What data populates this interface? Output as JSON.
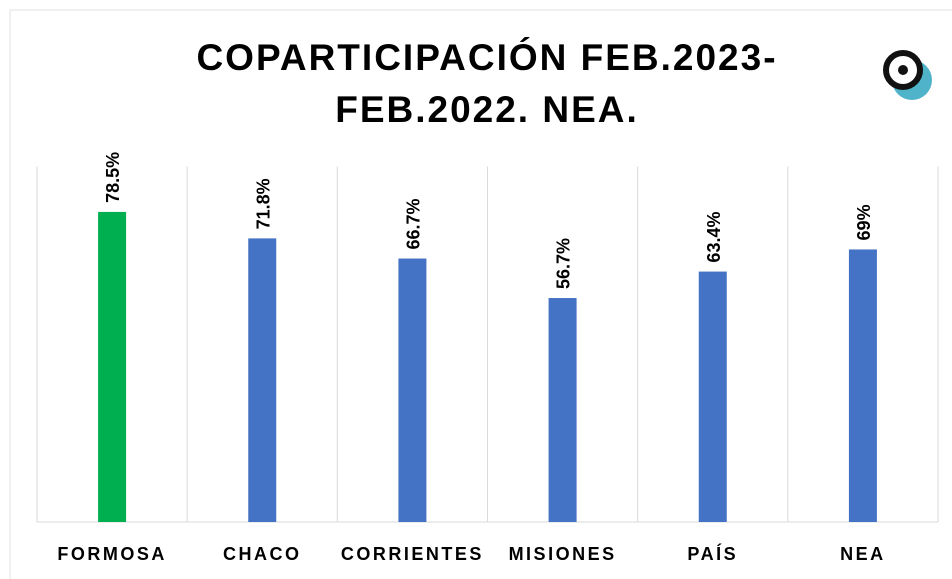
{
  "chart_data": {
    "type": "bar",
    "title": [
      "COPARTICIPACIÓN FEB.2023-",
      "FEB.2022. NEA."
    ],
    "categories": [
      "FORMOSA",
      "CHACO",
      "CORRIENTES",
      "MISIONES",
      "PAÍS",
      "NEA"
    ],
    "values": [
      78.5,
      71.8,
      66.7,
      56.7,
      63.4,
      69
    ],
    "value_labels": [
      "78.5%",
      "71.8%",
      "66.7%",
      "56.7%",
      "63.4%",
      "69%"
    ],
    "colors": [
      "#00b050",
      "#4472c4",
      "#4472c4",
      "#4472c4",
      "#4472c4",
      "#4472c4"
    ],
    "ylim": [
      0,
      90
    ]
  }
}
